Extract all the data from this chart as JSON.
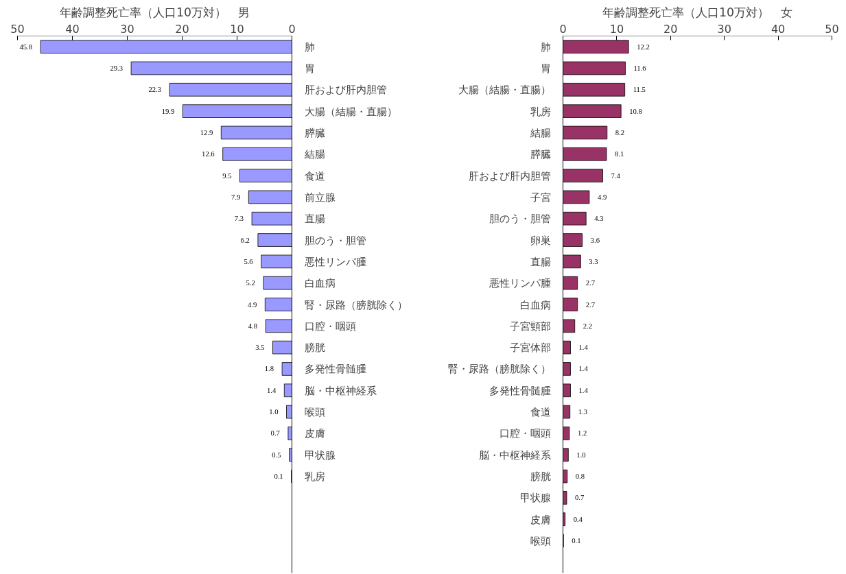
{
  "chart_data": [
    {
      "type": "bar",
      "orientation": "horizontal",
      "title": "年齢調整死亡率（人口10万対）　男",
      "categories": [
        "肺",
        "胃",
        "肝および肝内胆管",
        "大腸（結腸・直腸）",
        "膵臓",
        "結腸",
        "食道",
        "前立腺",
        "直腸",
        "胆のう・胆管",
        "悪性リンパ腫",
        "白血病",
        "腎・尿路（膀胱除く）",
        "口腔・咽頭",
        "膀胱",
        "多発性骨髄腫",
        "脳・中枢神経系",
        "喉頭",
        "皮膚",
        "甲状腺",
        "乳房",
        null,
        null,
        null,
        null
      ],
      "values": [
        45.8,
        29.3,
        22.3,
        19.9,
        12.9,
        12.6,
        9.5,
        7.9,
        7.3,
        6.2,
        5.6,
        5.2,
        4.9,
        4.8,
        3.5,
        1.8,
        1.4,
        1.0,
        0.7,
        0.5,
        0.1,
        null,
        null,
        null,
        null
      ],
      "value_labels": [
        "45.8",
        "29.3",
        "22.3",
        "19.9",
        "12.9",
        "12.6",
        "9.5",
        "7.9",
        "7.3",
        "6.2",
        "5.6",
        "5.2",
        "4.9",
        "4.8",
        "3.5",
        "1.8",
        "1.4",
        "1.0",
        "0.7",
        "0.5",
        "0.1",
        null,
        null,
        null,
        null
      ],
      "color": "#9999ff",
      "xlim": [
        50,
        0
      ],
      "xticks": [
        50,
        40,
        30,
        20,
        10,
        0
      ],
      "grid": false
    },
    {
      "type": "bar",
      "orientation": "horizontal",
      "title": "年齢調整死亡率（人口10万対）　女",
      "categories": [
        "肺",
        "胃",
        "大腸（結腸・直腸）",
        "乳房",
        "結腸",
        "膵臓",
        "肝および肝内胆管",
        "子宮",
        "胆のう・胆管",
        "卵巣",
        "直腸",
        "悪性リンパ腫",
        "白血病",
        "子宮頸部",
        "子宮体部",
        "腎・尿路（膀胱除く）",
        "多発性骨髄腫",
        "食道",
        "口腔・咽頭",
        "脳・中枢神経系",
        "膀胱",
        "甲状腺",
        "皮膚",
        "喉頭",
        null
      ],
      "values": [
        12.2,
        11.6,
        11.5,
        10.8,
        8.2,
        8.1,
        7.4,
        4.9,
        4.3,
        3.6,
        3.3,
        2.7,
        2.7,
        2.2,
        1.4,
        1.4,
        1.4,
        1.3,
        1.2,
        1.0,
        0.8,
        0.7,
        0.4,
        0.1,
        null
      ],
      "value_labels": [
        "12.2",
        "11.6",
        "11.5",
        "10.8",
        "8.2",
        "8.1",
        "7.4",
        "4.9",
        "4.3",
        "3.6",
        "3.3",
        "2.7",
        "2.7",
        "2.2",
        "1.4",
        "1.4",
        "1.4",
        "1.3",
        "1.2",
        "1.0",
        "0.8",
        "0.7",
        "0.4",
        "0.1",
        null
      ],
      "color": "#993366",
      "xlim": [
        0,
        50
      ],
      "xticks": [
        0,
        10,
        20,
        30,
        40,
        50
      ],
      "grid": false
    }
  ]
}
